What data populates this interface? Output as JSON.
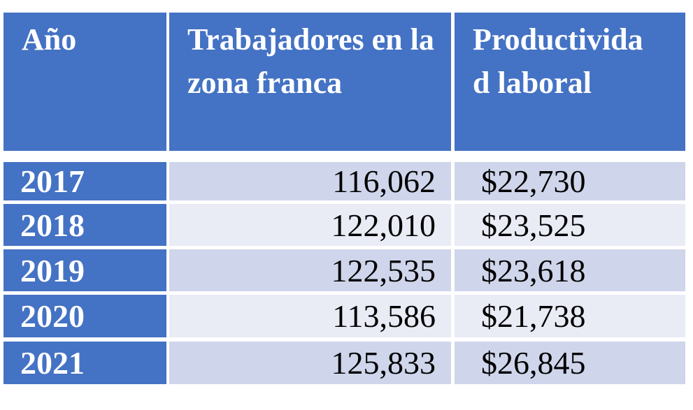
{
  "table": {
    "header": [
      "Año",
      "Trabajadores en la zona franca",
      "Productividad laboral"
    ],
    "rows": [
      [
        "2017",
        "116,062",
        "$22,730"
      ],
      [
        "2018",
        "122,010",
        "$23,525"
      ],
      [
        "2019",
        "122,535",
        "$23,618"
      ],
      [
        "2020",
        "113,586",
        "$21,738"
      ],
      [
        "2021",
        "125,833",
        "$26,845"
      ]
    ]
  }
}
